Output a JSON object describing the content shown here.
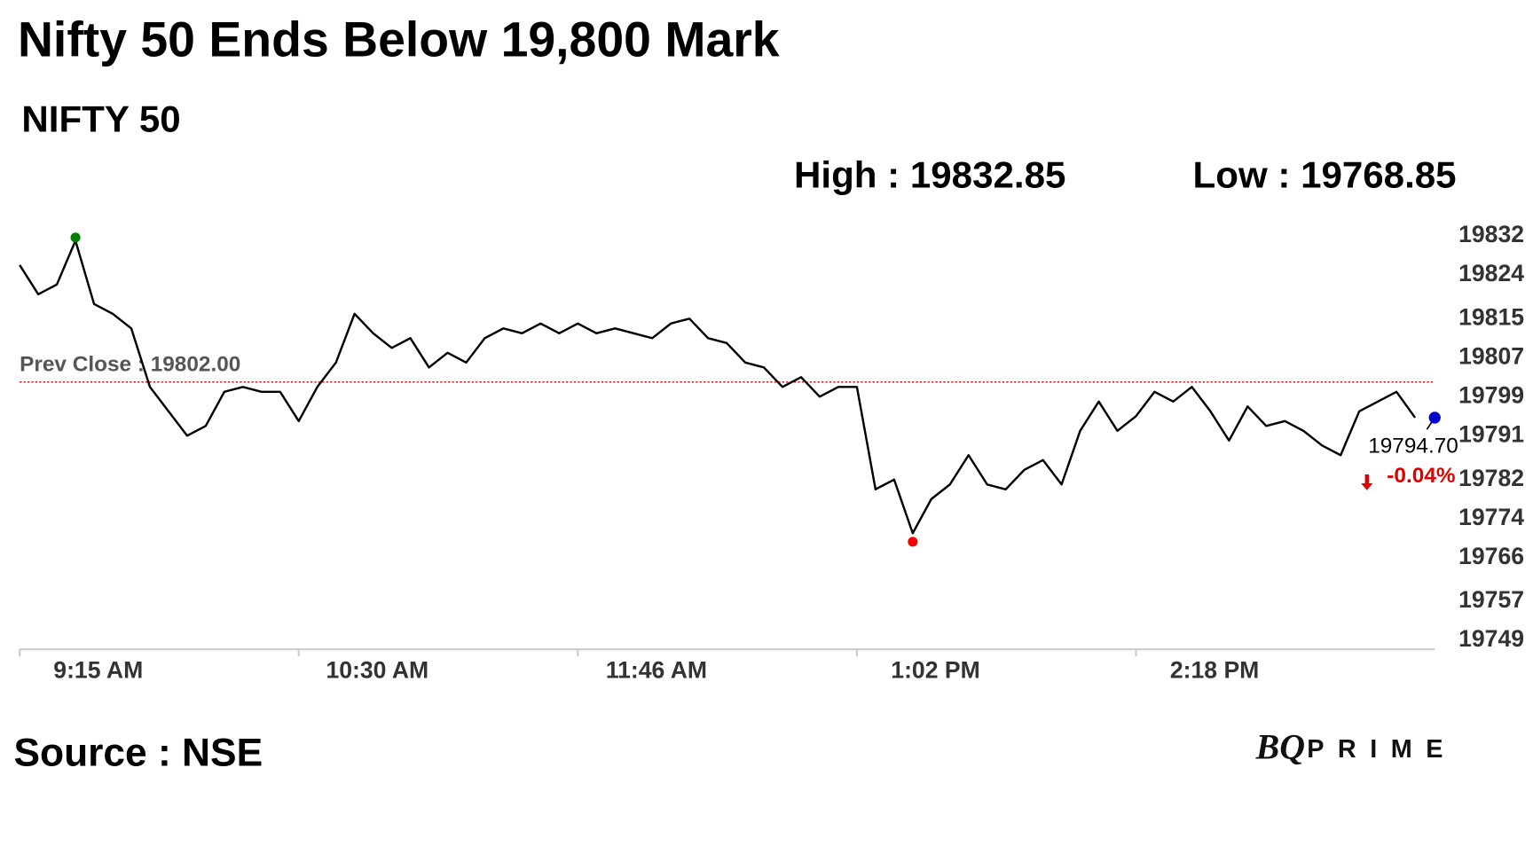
{
  "chart_data": {
    "type": "line",
    "title": "Nifty 50 Ends Below 19,800 Mark",
    "subtitle": "NIFTY 50",
    "high": {
      "value": 19832.85,
      "label": "High : 19832.85",
      "color": "#008000"
    },
    "low": {
      "value": 19768.85,
      "label": "Low : 19768.85",
      "color": "#ff0000"
    },
    "prev_close": {
      "value": 19802,
      "label": "Prev Close : 19802.00",
      "color": "#cc0000"
    },
    "last": {
      "value": 19794.7,
      "label": "19794.70",
      "color": "#0000cc"
    },
    "change": {
      "value": -0.04,
      "label": "-0.04%",
      "color": "#e00000"
    },
    "color": "#000000",
    "categories": [
      "9:15 AM",
      null,
      null,
      null,
      null,
      null,
      null,
      null,
      null,
      null,
      null,
      null,
      null,
      null,
      null,
      "10:30 AM",
      null,
      null,
      null,
      null,
      null,
      null,
      null,
      null,
      null,
      null,
      null,
      null,
      null,
      null,
      "11:46 AM",
      null,
      null,
      null,
      null,
      null,
      null,
      null,
      null,
      null,
      null,
      null,
      null,
      null,
      null,
      "1:02 PM",
      null,
      null,
      null,
      null,
      null,
      null,
      null,
      null,
      null,
      null,
      null,
      null,
      null,
      null,
      "2:18 PM",
      null,
      null,
      null,
      null,
      null,
      null,
      null,
      null,
      null,
      null,
      null,
      null,
      null,
      null,
      null
    ],
    "values": [
      19826,
      19820,
      19822,
      19831,
      19818,
      19816,
      19813,
      19801,
      19796,
      19791,
      19793,
      19800,
      19801,
      19800,
      19800,
      19794,
      19801,
      19806,
      19816,
      19812,
      19809,
      19811,
      19805,
      19808,
      19806,
      19811,
      19813,
      19812,
      19814,
      19812,
      19814,
      19812,
      19813,
      19812,
      19811,
      19814,
      19815,
      19811,
      19810,
      19806,
      19805,
      19801,
      19803,
      19799,
      19801,
      19801,
      19780,
      19782,
      19771,
      19778,
      19781,
      19787,
      19781,
      19780,
      19784,
      19786,
      19781,
      19792,
      19798,
      19792,
      19795,
      19800,
      19798,
      19801,
      19796,
      19790,
      19797,
      19793,
      19794,
      19792,
      19789,
      19787,
      19796,
      19798,
      19800,
      19794.7
    ],
    "ylim": [
      19749,
      19832
    ],
    "yticks": [
      19832,
      19824,
      19815,
      19807,
      19799,
      19791,
      19782,
      19774,
      19766,
      19757,
      19749
    ],
    "source": "Source : NSE",
    "brand_mark": "BQ",
    "brand_name": "PRIME"
  }
}
